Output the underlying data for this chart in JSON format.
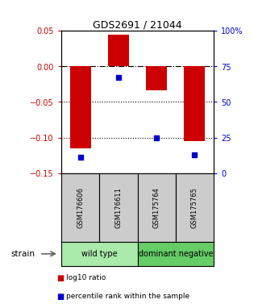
{
  "title": "GDS2691 / 21044",
  "samples": [
    "GSM176606",
    "GSM176611",
    "GSM175764",
    "GSM175765"
  ],
  "log10_ratios": [
    -0.115,
    0.044,
    -0.034,
    -0.105
  ],
  "percentile_ranks": [
    11,
    67,
    25,
    13
  ],
  "bar_color": "#cc0000",
  "dot_color": "#0000cc",
  "ylim_left": [
    -0.15,
    0.05
  ],
  "ylim_right": [
    0,
    100
  ],
  "yticks_left": [
    -0.15,
    -0.1,
    -0.05,
    0,
    0.05
  ],
  "yticks_right": [
    0,
    25,
    50,
    75,
    100
  ],
  "yticklabels_right": [
    "0",
    "25",
    "50",
    "75",
    "100%"
  ],
  "hlines": [
    0,
    -0.05,
    -0.1
  ],
  "hline_styles": [
    "dashdot",
    "dotted",
    "dotted"
  ],
  "groups": [
    {
      "label": "wild type",
      "start": 0,
      "end": 2,
      "color": "#aaeaaa"
    },
    {
      "label": "dominant negative",
      "start": 2,
      "end": 4,
      "color": "#66cc66"
    }
  ],
  "sample_box_color": "#cccccc",
  "strain_label": "strain",
  "legend_items": [
    {
      "color": "#cc0000",
      "label": "log10 ratio"
    },
    {
      "color": "#0000cc",
      "label": "percentile rank within the sample"
    }
  ],
  "bar_width": 0.55,
  "left_tick_color": "#cc0000",
  "right_tick_color": "#0000cc",
  "background_color": "#ffffff"
}
